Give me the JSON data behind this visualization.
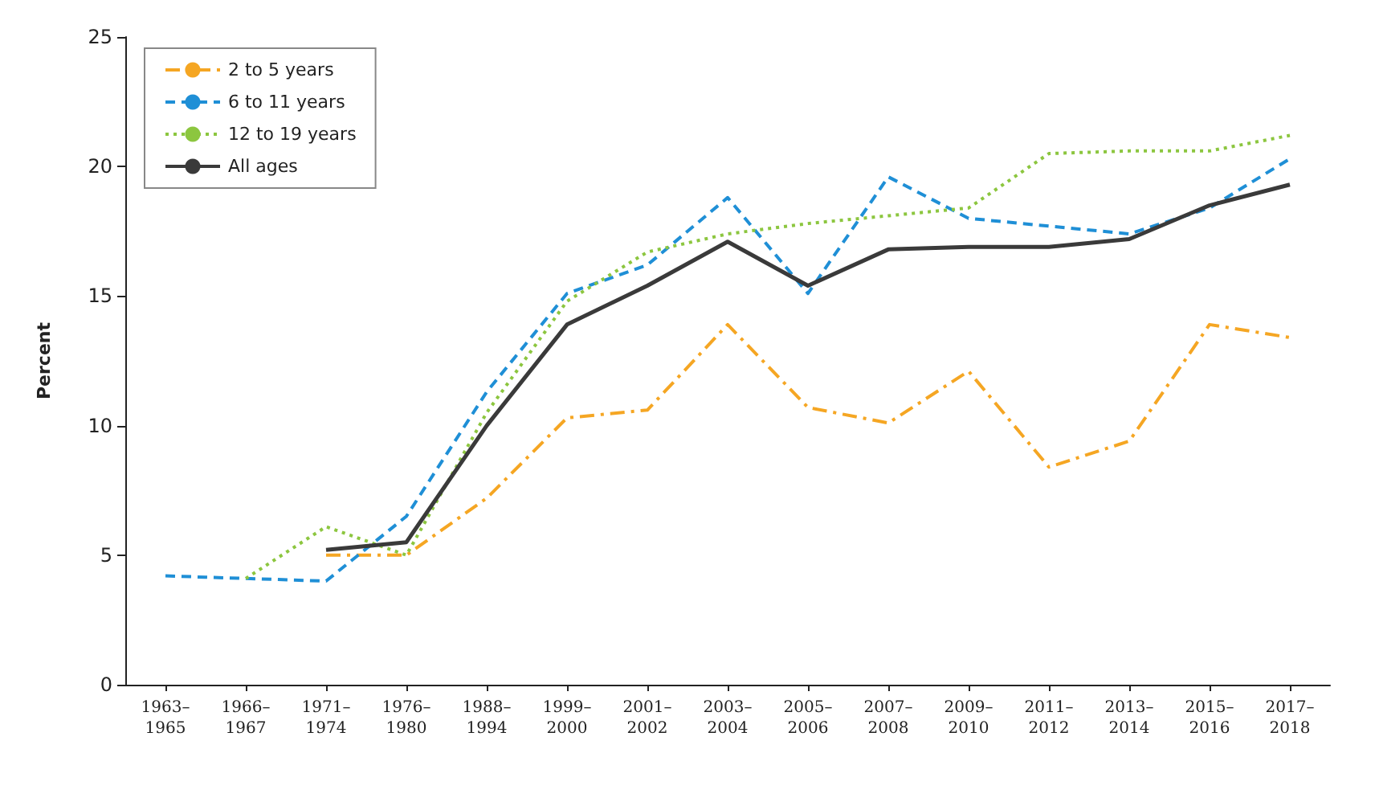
{
  "chart_data": {
    "type": "line",
    "ylabel": "Percent",
    "ylim": [
      0,
      25
    ],
    "yticks": [
      0,
      5,
      10,
      15,
      20,
      25
    ],
    "categories": [
      "1963–1965",
      "1966–1967",
      "1971–1974",
      "1976–1980",
      "1988–1994",
      "1999–2000",
      "2001–2002",
      "2003–2004",
      "2005–2006",
      "2007–2008",
      "2009–2010",
      "2011–2012",
      "2013–2014",
      "2015–2016",
      "2017–2018"
    ],
    "grid": false,
    "legend": "top left",
    "marker": "none",
    "series": [
      {
        "name": "2 to 5 years",
        "color": "#f5a623",
        "line_style": "dashdot",
        "values": [
          null,
          null,
          5.0,
          5.0,
          7.2,
          10.3,
          10.6,
          13.9,
          10.7,
          10.1,
          12.1,
          8.4,
          9.4,
          13.9,
          13.4
        ]
      },
      {
        "name": "6 to 11 years",
        "color": "#1f8fd6",
        "line_style": "dashed",
        "values": [
          4.2,
          4.1,
          4.0,
          6.5,
          11.3,
          15.1,
          16.2,
          18.8,
          15.1,
          19.6,
          18.0,
          17.7,
          17.4,
          18.4,
          20.3
        ]
      },
      {
        "name": "12 to 19 years",
        "color": "#8cc63f",
        "line_style": "dotted",
        "values": [
          null,
          4.1,
          6.1,
          5.0,
          10.5,
          14.8,
          16.7,
          17.4,
          17.8,
          18.1,
          18.4,
          20.5,
          20.6,
          20.6,
          21.2
        ]
      },
      {
        "name": "All ages",
        "color": "#3a3a3a",
        "line_style": "solid",
        "values": [
          null,
          null,
          5.2,
          5.5,
          10.0,
          13.9,
          15.4,
          17.1,
          15.4,
          16.8,
          16.9,
          16.9,
          17.2,
          18.5,
          19.3
        ]
      }
    ]
  }
}
